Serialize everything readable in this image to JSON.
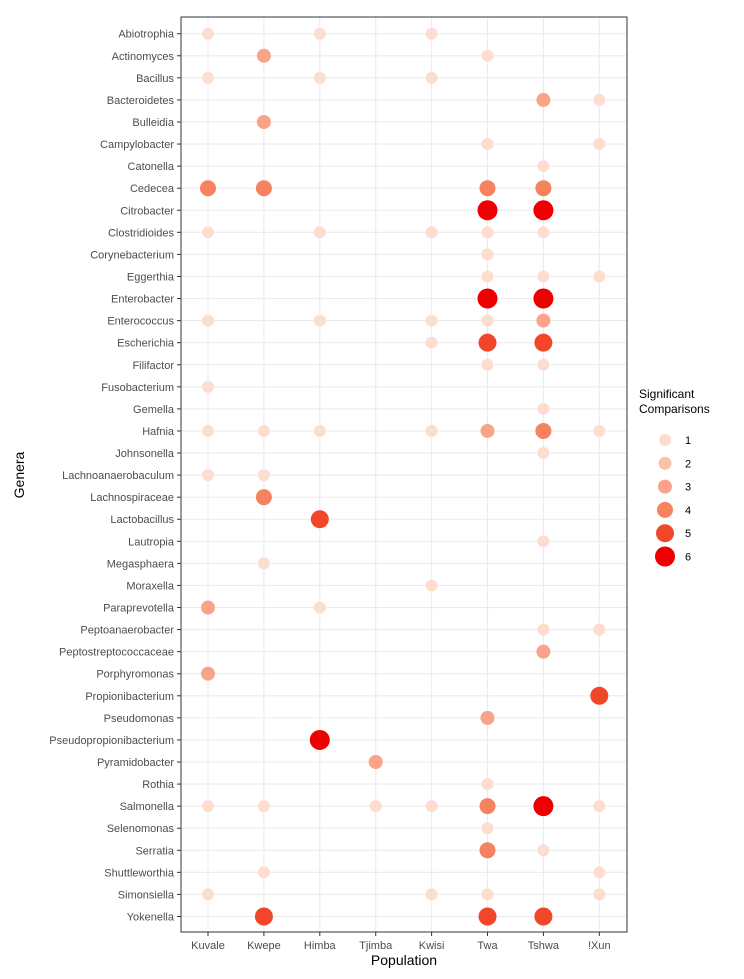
{
  "chart_data": {
    "type": "scatter",
    "title": "",
    "xlabel": "Population",
    "ylabel": "Genera",
    "x_categories": [
      "Kuvale",
      "Kwepe",
      "Himba",
      "Tjimba",
      "Kwisi",
      "Twa",
      "Tshwa",
      "!Xun"
    ],
    "y_categories": [
      "Abiotrophia",
      "Actinomyces",
      "Bacillus",
      "Bacteroidetes",
      "Bulleidia",
      "Campylobacter",
      "Catonella",
      "Cedecea",
      "Citrobacter",
      "Clostridioides",
      "Corynebacterium",
      "Eggerthia",
      "Enterobacter",
      "Enterococcus",
      "Escherichia",
      "Filifactor",
      "Fusobacterium",
      "Gemella",
      "Hafnia",
      "Johnsonella",
      "Lachnoanaerobaculum",
      "Lachnospiraceae",
      "Lactobacillus",
      "Lautropia",
      "Megasphaera",
      "Moraxella",
      "Paraprevotella",
      "Peptoanaerobacter",
      "Peptostreptococcaceae",
      "Porphyromonas",
      "Propionibacterium",
      "Pseudomonas",
      "Pseudopropionibacterium",
      "Pyramidobacter",
      "Rothia",
      "Salmonella",
      "Selenomonas",
      "Serratia",
      "Shuttleworthia",
      "Simonsiella",
      "Yokenella"
    ],
    "size_and_color_variable": "Significant Comparisons",
    "legend": {
      "title": "Significant Comparisons",
      "values": [
        1,
        2,
        3,
        4,
        5,
        6
      ],
      "placement": "right"
    },
    "color_scale": {
      "low": "#fde0d2",
      "high": "#ff0000"
    },
    "points": [
      {
        "genus": "Abiotrophia",
        "population": "Kuvale",
        "value": 1
      },
      {
        "genus": "Abiotrophia",
        "population": "Himba",
        "value": 1
      },
      {
        "genus": "Abiotrophia",
        "population": "Kwisi",
        "value": 1
      },
      {
        "genus": "Actinomyces",
        "population": "Kwepe",
        "value": 3
      },
      {
        "genus": "Actinomyces",
        "population": "Twa",
        "value": 1
      },
      {
        "genus": "Bacillus",
        "population": "Kuvale",
        "value": 1
      },
      {
        "genus": "Bacillus",
        "population": "Himba",
        "value": 1
      },
      {
        "genus": "Bacillus",
        "population": "Kwisi",
        "value": 1
      },
      {
        "genus": "Bacteroidetes",
        "population": "Tshwa",
        "value": 3
      },
      {
        "genus": "Bacteroidetes",
        "population": "!Xun",
        "value": 1
      },
      {
        "genus": "Bulleidia",
        "population": "Kwepe",
        "value": 3
      },
      {
        "genus": "Campylobacter",
        "population": "Twa",
        "value": 1
      },
      {
        "genus": "Campylobacter",
        "population": "!Xun",
        "value": 1
      },
      {
        "genus": "Catonella",
        "population": "Tshwa",
        "value": 1
      },
      {
        "genus": "Cedecea",
        "population": "Kuvale",
        "value": 4
      },
      {
        "genus": "Cedecea",
        "population": "Kwepe",
        "value": 4
      },
      {
        "genus": "Cedecea",
        "population": "Twa",
        "value": 4
      },
      {
        "genus": "Cedecea",
        "population": "Tshwa",
        "value": 4
      },
      {
        "genus": "Citrobacter",
        "population": "Twa",
        "value": 6
      },
      {
        "genus": "Citrobacter",
        "population": "Tshwa",
        "value": 6
      },
      {
        "genus": "Clostridioides",
        "population": "Kuvale",
        "value": 1
      },
      {
        "genus": "Clostridioides",
        "population": "Himba",
        "value": 1
      },
      {
        "genus": "Clostridioides",
        "population": "Kwisi",
        "value": 1
      },
      {
        "genus": "Clostridioides",
        "population": "Twa",
        "value": 1
      },
      {
        "genus": "Clostridioides",
        "population": "Tshwa",
        "value": 1
      },
      {
        "genus": "Corynebacterium",
        "population": "Twa",
        "value": 1
      },
      {
        "genus": "Eggerthia",
        "population": "Twa",
        "value": 1
      },
      {
        "genus": "Eggerthia",
        "population": "Tshwa",
        "value": 1
      },
      {
        "genus": "Eggerthia",
        "population": "!Xun",
        "value": 1
      },
      {
        "genus": "Enterobacter",
        "population": "Twa",
        "value": 6
      },
      {
        "genus": "Enterobacter",
        "population": "Tshwa",
        "value": 6
      },
      {
        "genus": "Enterococcus",
        "population": "Kuvale",
        "value": 1
      },
      {
        "genus": "Enterococcus",
        "population": "Himba",
        "value": 1
      },
      {
        "genus": "Enterococcus",
        "population": "Kwisi",
        "value": 1
      },
      {
        "genus": "Enterococcus",
        "population": "Twa",
        "value": 1
      },
      {
        "genus": "Enterococcus",
        "population": "Tshwa",
        "value": 3
      },
      {
        "genus": "Escherichia",
        "population": "Kwisi",
        "value": 1
      },
      {
        "genus": "Escherichia",
        "population": "Twa",
        "value": 5
      },
      {
        "genus": "Escherichia",
        "population": "Tshwa",
        "value": 5
      },
      {
        "genus": "Filifactor",
        "population": "Twa",
        "value": 1
      },
      {
        "genus": "Filifactor",
        "population": "Tshwa",
        "value": 1
      },
      {
        "genus": "Fusobacterium",
        "population": "Kuvale",
        "value": 1
      },
      {
        "genus": "Gemella",
        "population": "Tshwa",
        "value": 1
      },
      {
        "genus": "Hafnia",
        "population": "Kuvale",
        "value": 1
      },
      {
        "genus": "Hafnia",
        "population": "Kwepe",
        "value": 1
      },
      {
        "genus": "Hafnia",
        "population": "Himba",
        "value": 1
      },
      {
        "genus": "Hafnia",
        "population": "Kwisi",
        "value": 1
      },
      {
        "genus": "Hafnia",
        "population": "Twa",
        "value": 3
      },
      {
        "genus": "Hafnia",
        "population": "Tshwa",
        "value": 4
      },
      {
        "genus": "Hafnia",
        "population": "!Xun",
        "value": 1
      },
      {
        "genus": "Johnsonella",
        "population": "Tshwa",
        "value": 1
      },
      {
        "genus": "Lachnoanaerobaculum",
        "population": "Kuvale",
        "value": 1
      },
      {
        "genus": "Lachnoanaerobaculum",
        "population": "Kwepe",
        "value": 1
      },
      {
        "genus": "Lachnospiraceae",
        "population": "Kwepe",
        "value": 4
      },
      {
        "genus": "Lactobacillus",
        "population": "Himba",
        "value": 5
      },
      {
        "genus": "Lautropia",
        "population": "Tshwa",
        "value": 1
      },
      {
        "genus": "Megasphaera",
        "population": "Kwepe",
        "value": 1
      },
      {
        "genus": "Moraxella",
        "population": "Kwisi",
        "value": 1
      },
      {
        "genus": "Paraprevotella",
        "population": "Kuvale",
        "value": 3
      },
      {
        "genus": "Paraprevotella",
        "population": "Himba",
        "value": 1
      },
      {
        "genus": "Peptoanaerobacter",
        "population": "Tshwa",
        "value": 1
      },
      {
        "genus": "Peptoanaerobacter",
        "population": "!Xun",
        "value": 1
      },
      {
        "genus": "Peptostreptococcaceae",
        "population": "Tshwa",
        "value": 3
      },
      {
        "genus": "Porphyromonas",
        "population": "Kuvale",
        "value": 3
      },
      {
        "genus": "Propionibacterium",
        "population": "!Xun",
        "value": 5
      },
      {
        "genus": "Pseudomonas",
        "population": "Twa",
        "value": 3
      },
      {
        "genus": "Pseudopropionibacterium",
        "population": "Himba",
        "value": 6
      },
      {
        "genus": "Pyramidobacter",
        "population": "Tjimba",
        "value": 3
      },
      {
        "genus": "Rothia",
        "population": "Twa",
        "value": 1
      },
      {
        "genus": "Salmonella",
        "population": "Kuvale",
        "value": 1
      },
      {
        "genus": "Salmonella",
        "population": "Kwepe",
        "value": 1
      },
      {
        "genus": "Salmonella",
        "population": "Tjimba",
        "value": 1
      },
      {
        "genus": "Salmonella",
        "population": "Kwisi",
        "value": 1
      },
      {
        "genus": "Salmonella",
        "population": "Twa",
        "value": 4
      },
      {
        "genus": "Salmonella",
        "population": "Tshwa",
        "value": 6
      },
      {
        "genus": "Salmonella",
        "population": "!Xun",
        "value": 1
      },
      {
        "genus": "Selenomonas",
        "population": "Twa",
        "value": 1
      },
      {
        "genus": "Serratia",
        "population": "Twa",
        "value": 4
      },
      {
        "genus": "Serratia",
        "population": "Tshwa",
        "value": 1
      },
      {
        "genus": "Shuttleworthia",
        "population": "Kwepe",
        "value": 1
      },
      {
        "genus": "Shuttleworthia",
        "population": "!Xun",
        "value": 1
      },
      {
        "genus": "Simonsiella",
        "population": "Kuvale",
        "value": 1
      },
      {
        "genus": "Simonsiella",
        "population": "Kwisi",
        "value": 1
      },
      {
        "genus": "Simonsiella",
        "population": "Twa",
        "value": 1
      },
      {
        "genus": "Simonsiella",
        "population": "!Xun",
        "value": 1
      },
      {
        "genus": "Yokenella",
        "population": "Kwepe",
        "value": 5
      },
      {
        "genus": "Yokenella",
        "population": "Twa",
        "value": 5
      },
      {
        "genus": "Yokenella",
        "population": "Tshwa",
        "value": 5
      }
    ],
    "grid": true
  }
}
